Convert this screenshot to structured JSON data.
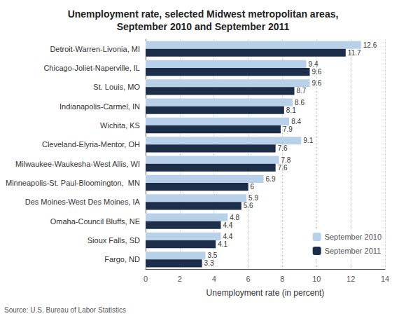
{
  "chart_data": {
    "type": "bar",
    "orientation": "horizontal",
    "title": "Unemployment rate, selected Midwest metropolitan areas,\nSeptember 2010 and September 2011",
    "categories": [
      "Detroit-Warren-Livonia, MI",
      "Chicago-Joliet-Naperville, IL",
      "St. Louis, MO",
      "Indianapolis-Carmel, IN",
      "Wichita, KS",
      "Cleveland-Elyria-Mentor, OH",
      "Milwaukee-Waukesha-West Allis, WI",
      "Minneapolis-St. Paul-Bloomington,  MN",
      "Des Moines-West Des Moines, IA",
      "Omaha-Council Bluffs, NE",
      "Sioux Falls, SD",
      "Fargo, ND"
    ],
    "series": [
      {
        "name": "September 2010",
        "color": "#b8d0e8",
        "values": [
          12.6,
          9.4,
          9.6,
          8.6,
          8.4,
          9.1,
          7.8,
          6.9,
          5.9,
          4.8,
          4.4,
          3.5
        ]
      },
      {
        "name": "September 2011",
        "color": "#1c2e4a",
        "values": [
          11.7,
          9.6,
          8.7,
          8.1,
          7.9,
          7.6,
          7.6,
          6.0,
          5.6,
          4.4,
          4.1,
          3.3
        ]
      }
    ],
    "xlabel": "Unemployment rate (in percent)",
    "xlim": [
      0,
      14
    ],
    "xticks": [
      0,
      2,
      4,
      6,
      8,
      10,
      12,
      14
    ],
    "grid": true,
    "legend": "lower right",
    "data_labels": true,
    "annotations": [
      "Source: U.S. Bureau of Labor Statistics"
    ]
  }
}
